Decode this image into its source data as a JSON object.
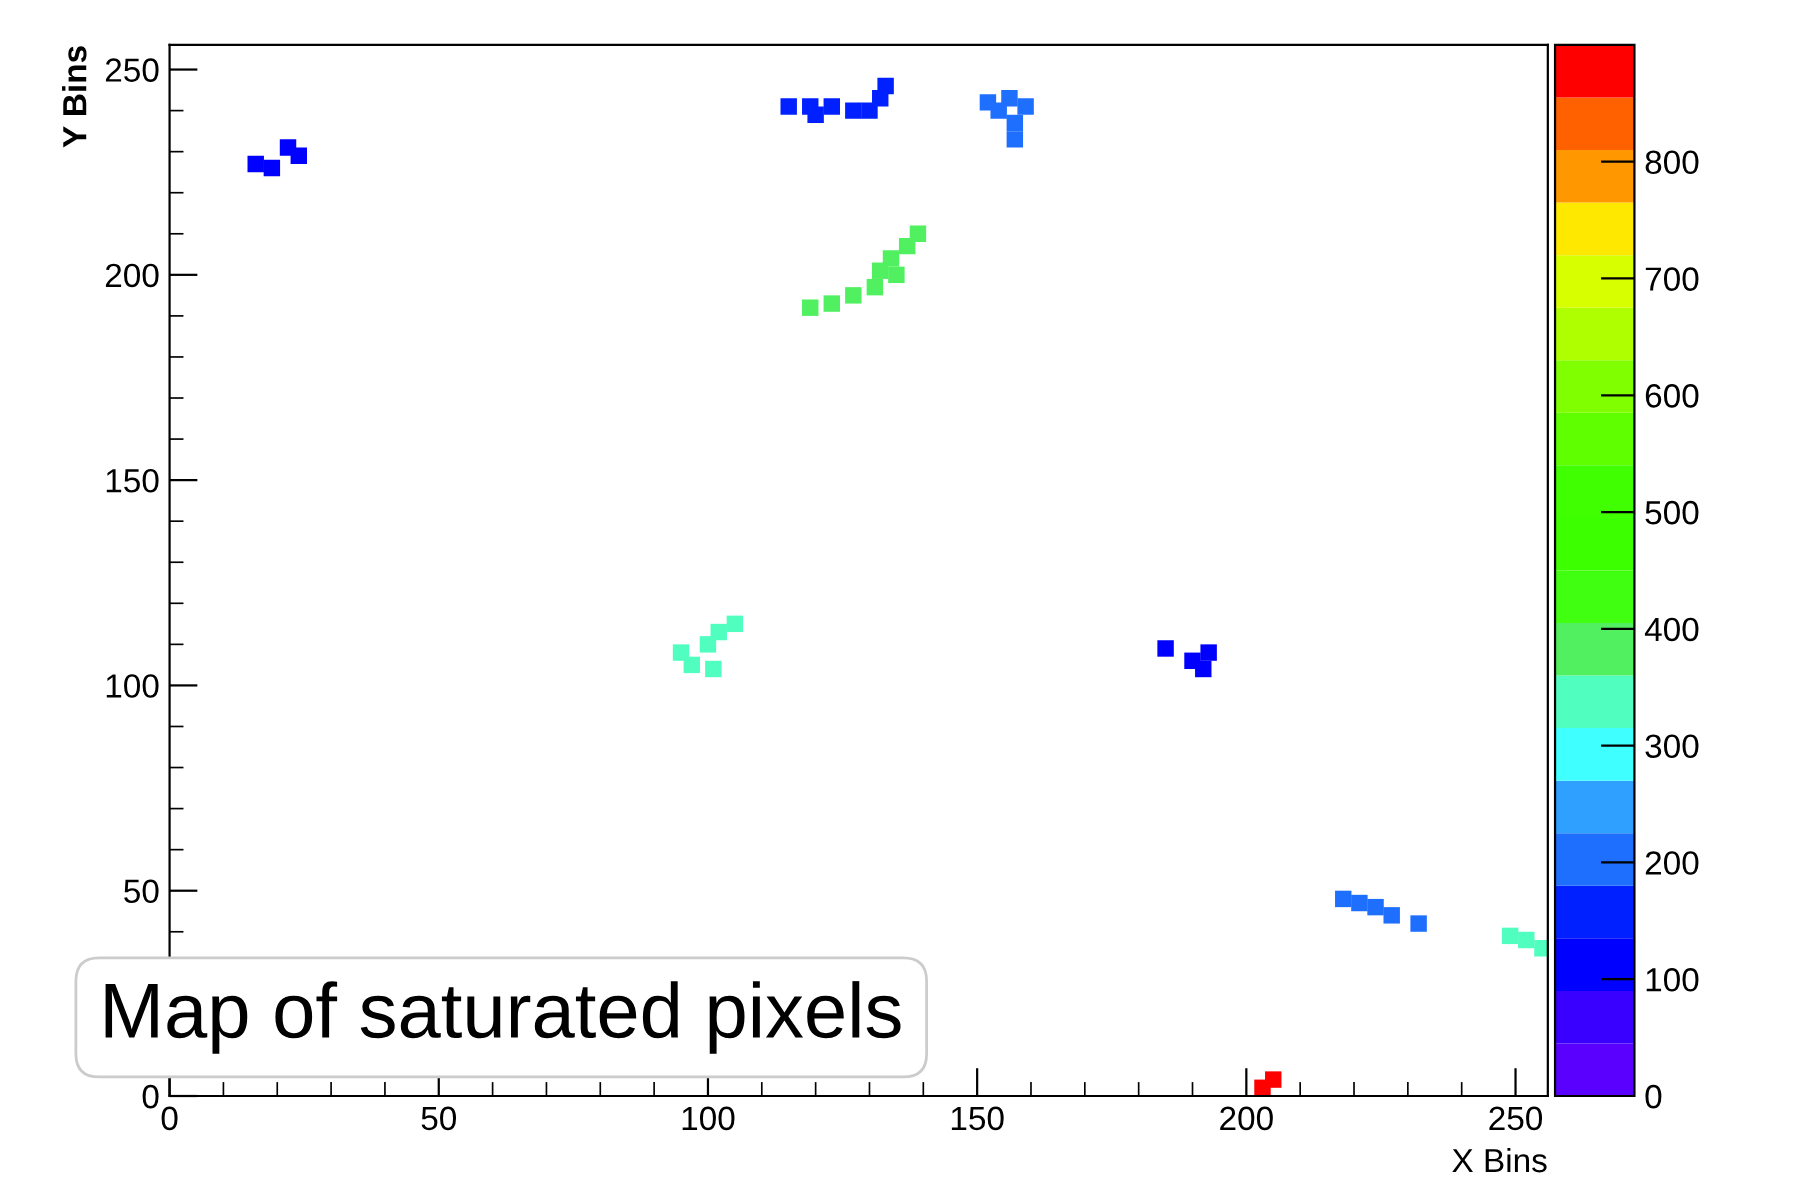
{
  "chart_data": {
    "type": "scatter",
    "xlabel": "X Bins",
    "ylabel": "Y Bins",
    "annotations": [
      "Map of saturated pixels"
    ],
    "xlim": [
      0,
      256
    ],
    "ylim": [
      0,
      256
    ],
    "xticks": [
      0,
      50,
      100,
      150,
      200,
      250
    ],
    "yticks": [
      0,
      50,
      100,
      150,
      200,
      250
    ],
    "clim": [
      0,
      900
    ],
    "cticks": [
      0,
      100,
      200,
      300,
      400,
      500,
      600,
      700,
      800
    ],
    "grid": false,
    "marker": "square",
    "x": [
      16,
      24,
      22,
      19,
      115,
      119,
      123,
      127,
      130,
      132,
      133,
      120,
      152,
      156,
      159,
      157,
      157,
      154,
      119,
      123,
      127,
      131,
      132,
      134,
      137,
      139,
      135,
      95,
      100,
      102,
      105,
      101,
      97,
      185,
      190,
      192,
      193,
      218,
      221,
      224,
      227,
      232,
      249,
      252,
      255,
      203,
      205
    ],
    "values": [
      227,
      229,
      231,
      226,
      241,
      241,
      241,
      240,
      240,
      243,
      246,
      239,
      242,
      243,
      241,
      237,
      233,
      240,
      192,
      193,
      195,
      197,
      201,
      204,
      207,
      210,
      200,
      108,
      110,
      113,
      115,
      104,
      105,
      109,
      106,
      104,
      108,
      48,
      47,
      46,
      44,
      42,
      39,
      38,
      36,
      2,
      4
    ],
    "cvalues": [
      110,
      110,
      110,
      110,
      150,
      150,
      150,
      150,
      150,
      150,
      150,
      150,
      200,
      200,
      200,
      200,
      200,
      200,
      380,
      380,
      380,
      380,
      380,
      380,
      380,
      380,
      380,
      340,
      340,
      340,
      340,
      340,
      340,
      110,
      110,
      110,
      110,
      200,
      200,
      200,
      200,
      200,
      340,
      340,
      340,
      880,
      880
    ]
  }
}
